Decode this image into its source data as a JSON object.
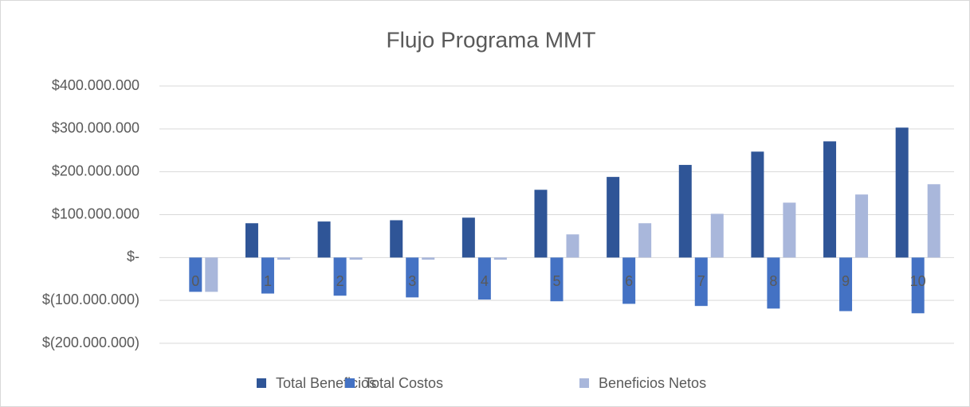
{
  "chart_data": {
    "type": "bar",
    "title": "Flujo Programa MMT",
    "categories": [
      "0",
      "1",
      "2",
      "3",
      "4",
      "5",
      "6",
      "7",
      "8",
      "9",
      "10"
    ],
    "series": [
      {
        "name": "Total Beneficios",
        "color": "#2f5597",
        "values": [
          0,
          80000000,
          84000000,
          87000000,
          93000000,
          158000000,
          188000000,
          216000000,
          247000000,
          271000000,
          303000000
        ]
      },
      {
        "name": "Total Costos",
        "color": "#4472c4",
        "values": [
          -80000000,
          -84000000,
          -89000000,
          -93000000,
          -98000000,
          -102000000,
          -108000000,
          -113000000,
          -119000000,
          -125000000,
          -130000000
        ]
      },
      {
        "name": "Beneficios Netos",
        "color": "#a9b7db",
        "values": [
          -80000000,
          -5000000,
          -5000000,
          -5000000,
          -5000000,
          54000000,
          80000000,
          102000000,
          128000000,
          147000000,
          171000000
        ]
      }
    ],
    "ylim": [
      -200000000,
      400000000
    ],
    "yticks": [
      {
        "value": -200000000,
        "label": "$(200.000.000)"
      },
      {
        "value": -100000000,
        "label": "$(100.000.000)"
      },
      {
        "value": 0,
        "label": "$-"
      },
      {
        "value": 100000000,
        "label": "$100.000.000"
      },
      {
        "value": 200000000,
        "label": "$200.000.000"
      },
      {
        "value": 300000000,
        "label": "$300.000.000"
      },
      {
        "value": 400000000,
        "label": "$400.000.000"
      }
    ],
    "grid": true,
    "legend": "bottom"
  }
}
